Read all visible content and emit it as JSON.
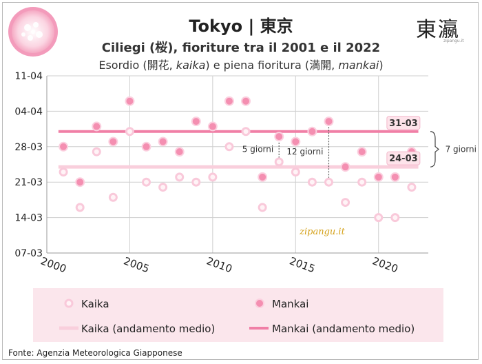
{
  "header": {
    "title": "Tokyo | 東京",
    "subtitle": "Ciliegi (桜), fioriture tra il 2001 e il 2022",
    "subtitle2_parts": [
      "Esordio (開花, ",
      "kaika",
      ") e piena fioritura (満開, ",
      "mankai",
      ")"
    ],
    "logo_text": "東瀛",
    "logo_sub": "zipangu.it"
  },
  "source": "Fonte: Agenzia Meteorologica Giapponese",
  "watermark": "zipangu.it",
  "colors": {
    "kaika": "#f9c9da",
    "mankai": "#f48fb1",
    "kaika_line": "#f9cfdc",
    "mankai_line": "#f07fa6",
    "legend_bg": "#fbe6ec",
    "watermark": "#d4a017"
  },
  "chart_data": {
    "type": "scatter",
    "xlim": [
      2000,
      2023
    ],
    "x_ticks": [
      2000,
      2005,
      2010,
      2015,
      2020
    ],
    "y_unit": "day-month (DD-MM)",
    "y_ticks": [
      "07-03",
      "14-03",
      "21-03",
      "28-03",
      "04-04",
      "11-04"
    ],
    "ylim": [
      "07-03",
      "11-04"
    ],
    "grid": true,
    "legend_placement": "bottom",
    "series": [
      {
        "name": "Kaika",
        "style": "ring",
        "points": [
          {
            "x": 2001,
            "y": "23-03"
          },
          {
            "x": 2002,
            "y": "16-03"
          },
          {
            "x": 2003,
            "y": "27-03"
          },
          {
            "x": 2004,
            "y": "18-03"
          },
          {
            "x": 2005,
            "y": "31-03"
          },
          {
            "x": 2006,
            "y": "21-03"
          },
          {
            "x": 2007,
            "y": "20-03"
          },
          {
            "x": 2008,
            "y": "22-03"
          },
          {
            "x": 2009,
            "y": "21-03"
          },
          {
            "x": 2010,
            "y": "22-03"
          },
          {
            "x": 2011,
            "y": "28-03"
          },
          {
            "x": 2012,
            "y": "31-03"
          },
          {
            "x": 2013,
            "y": "16-03"
          },
          {
            "x": 2014,
            "y": "25-03"
          },
          {
            "x": 2015,
            "y": "23-03"
          },
          {
            "x": 2016,
            "y": "21-03"
          },
          {
            "x": 2017,
            "y": "21-03"
          },
          {
            "x": 2018,
            "y": "17-03"
          },
          {
            "x": 2019,
            "y": "21-03"
          },
          {
            "x": 2020,
            "y": "14-03"
          },
          {
            "x": 2021,
            "y": "14-03"
          },
          {
            "x": 2022,
            "y": "20-03"
          }
        ]
      },
      {
        "name": "Mankai",
        "style": "dot",
        "points": [
          {
            "x": 2001,
            "y": "28-03"
          },
          {
            "x": 2002,
            "y": "21-03"
          },
          {
            "x": 2003,
            "y": "01-04"
          },
          {
            "x": 2004,
            "y": "29-03"
          },
          {
            "x": 2005,
            "y": "06-04"
          },
          {
            "x": 2006,
            "y": "28-03"
          },
          {
            "x": 2007,
            "y": "29-03"
          },
          {
            "x": 2008,
            "y": "27-03"
          },
          {
            "x": 2009,
            "y": "02-04"
          },
          {
            "x": 2010,
            "y": "01-04"
          },
          {
            "x": 2011,
            "y": "06-04"
          },
          {
            "x": 2012,
            "y": "06-04"
          },
          {
            "x": 2013,
            "y": "22-03"
          },
          {
            "x": 2014,
            "y": "30-03"
          },
          {
            "x": 2015,
            "y": "29-03"
          },
          {
            "x": 2016,
            "y": "31-03"
          },
          {
            "x": 2017,
            "y": "02-04"
          },
          {
            "x": 2018,
            "y": "24-03"
          },
          {
            "x": 2019,
            "y": "27-03"
          },
          {
            "x": 2020,
            "y": "22-03"
          },
          {
            "x": 2021,
            "y": "22-03"
          },
          {
            "x": 2022,
            "y": "27-03"
          }
        ]
      },
      {
        "name": "Kaika (andamento medio)",
        "style": "line",
        "value": "24-03",
        "label": "24-03"
      },
      {
        "name": "Mankai (andamento medio)",
        "style": "line",
        "value": "31-03",
        "label": "31-03"
      }
    ],
    "annotations": [
      {
        "text": "5 giorni",
        "x": 2014,
        "from": "25-03",
        "to": "30-03"
      },
      {
        "text": "12 giorni",
        "x": 2017,
        "from": "21-03",
        "to": "02-04"
      },
      {
        "text": "7 giorni",
        "from": "24-03",
        "to": "31-03"
      }
    ]
  }
}
